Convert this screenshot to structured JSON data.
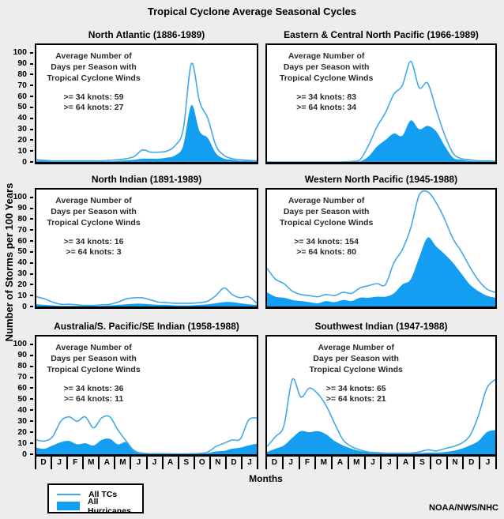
{
  "title": "Tropical Cyclone Average Seasonal Cycles",
  "credit": "NOAA/NWS/NHC",
  "annotation": [
    "Average Number of",
    "Days per Season with",
    "Tropical Cyclone Winds"
  ],
  "legend": {
    "tcs": "All TCs",
    "hurricanes": "All Hurricanes"
  },
  "colors": {
    "tc_line": "#41a9ea",
    "hurricane_fill": "#149ef2",
    "panel_bg": "#ffffff",
    "page_bg": "#ededed",
    "axis": "#000000",
    "annotation_text": "#2b2b2b"
  },
  "chart_data": {
    "type": "area",
    "xlabel": "Months",
    "ylabel": "Number of Storms per 100 Years",
    "months": [
      "D",
      "J",
      "F",
      "M",
      "A",
      "M",
      "J",
      "J",
      "A",
      "S",
      "O",
      "N",
      "D",
      "J"
    ],
    "yticks": [
      0,
      10,
      20,
      30,
      40,
      50,
      60,
      70,
      80,
      90,
      100
    ],
    "ylim": [
      0,
      100
    ],
    "x_note": "28 samples per series at half-month spacing spanning 14 months (Dec through following Jan)",
    "panels": [
      {
        "id": "north-atlantic",
        "title": "North Atlantic (1886-1989)",
        "ge34": ">= 34 knots: 59",
        "ge64": ">= 64 knots: 27",
        "series": {
          "all_tcs": [
            2,
            1.5,
            1,
            1,
            1,
            1,
            1,
            1,
            1,
            1.5,
            2,
            3,
            5,
            11,
            9,
            9,
            10,
            15,
            30,
            90,
            55,
            40,
            15,
            6,
            3,
            2,
            1.5,
            1
          ],
          "all_hurricanes": [
            1,
            1,
            0.5,
            0.5,
            0.5,
            0.5,
            0.5,
            0.5,
            0.5,
            0.5,
            1,
            1.5,
            2,
            3,
            3,
            3,
            4,
            6,
            15,
            52,
            28,
            22,
            8,
            3,
            2,
            1,
            1,
            0.5
          ]
        }
      },
      {
        "id": "eastern-central-north-pacific",
        "title": "Eastern & Central North Pacific (1966-1989)",
        "ge34": ">= 34 knots: 83",
        "ge64": ">= 64 knots: 34",
        "series": {
          "all_tcs": [
            0,
            0,
            0,
            0,
            0,
            0,
            0,
            0,
            0,
            0,
            0.5,
            2,
            15,
            32,
            45,
            62,
            70,
            92,
            68,
            72,
            48,
            25,
            8,
            3,
            2,
            1,
            1,
            0.5
          ],
          "all_hurricanes": [
            0,
            0,
            0,
            0,
            0,
            0,
            0,
            0,
            0,
            0,
            0,
            0.5,
            5,
            14,
            20,
            26,
            24,
            38,
            30,
            33,
            28,
            15,
            4,
            2,
            1,
            0.5,
            0.5,
            0
          ]
        }
      },
      {
        "id": "north-indian",
        "title": "North Indian (1891-1989)",
        "ge34": ">= 34 knots: 16",
        "ge64": ">= 64 knots: 3",
        "series": {
          "all_tcs": [
            9,
            7,
            4,
            2,
            2,
            1.5,
            1,
            1,
            1.5,
            2,
            4,
            7,
            8,
            8,
            6,
            4,
            3.5,
            3,
            3,
            3,
            3.5,
            5,
            10,
            17,
            11,
            8,
            9,
            3
          ],
          "all_hurricanes": [
            2,
            1.5,
            1,
            0.5,
            0.5,
            0.5,
            0.5,
            0.5,
            0.5,
            1,
            1.5,
            2,
            2.5,
            2.5,
            2,
            1.5,
            1.5,
            1,
            1,
            1,
            1.5,
            2,
            3,
            4,
            4,
            3,
            2,
            1.5
          ]
        }
      },
      {
        "id": "western-north-pacific",
        "title": "Western North Pacific (1945-1988)",
        "ge34": ">= 34 knots: 154",
        "ge64": ">= 64 knots: 80",
        "series": {
          "all_tcs": [
            35,
            25,
            21,
            14,
            11,
            10,
            9,
            11,
            10,
            13,
            12,
            17,
            19,
            21,
            20,
            40,
            52,
            72,
            102,
            105,
            95,
            80,
            62,
            50,
            36,
            24,
            16,
            13
          ],
          "all_hurricanes": [
            13,
            9,
            8,
            6,
            5,
            4,
            3,
            5,
            4,
            6,
            5,
            8,
            8,
            9,
            9,
            12,
            20,
            25,
            45,
            63,
            55,
            48,
            40,
            30,
            20,
            14,
            10,
            8
          ]
        }
      },
      {
        "id": "australia-s-pacific-se-indian",
        "title": "Australia/S. Pacific/SE Indian (1958-1988)",
        "ge34": ">= 34 knots: 36",
        "ge64": ">= 64 knots: 11",
        "series": {
          "all_tcs": [
            13,
            12,
            16,
            30,
            34,
            30,
            34,
            24,
            33,
            34,
            22,
            12,
            3,
            1,
            0.5,
            0.5,
            0.5,
            0.3,
            0.3,
            0.5,
            0.8,
            2,
            7,
            10,
            13,
            14,
            31,
            33
          ],
          "all_hurricanes": [
            6,
            5,
            8,
            11,
            12,
            9,
            10,
            8,
            13,
            14,
            9,
            11,
            4,
            1,
            0.3,
            0.2,
            0.2,
            0.2,
            0.2,
            0.3,
            0.5,
            1,
            2.5,
            3,
            5,
            6,
            8,
            9.5
          ]
        }
      },
      {
        "id": "southwest-indian",
        "title": "Southwest Indian (1947-1988)",
        "ge34": ">= 34 knots: 65",
        "ge64": ">= 64 knots: 21",
        "series": {
          "all_tcs": [
            7,
            16,
            26,
            68,
            52,
            60,
            55,
            44,
            28,
            13,
            7,
            4,
            2,
            1.5,
            1,
            1,
            1,
            1,
            2,
            4,
            3,
            5,
            7,
            10,
            17,
            35,
            60,
            68
          ],
          "all_hurricanes": [
            2,
            5,
            8,
            15,
            21,
            20,
            21,
            18,
            12,
            8,
            5,
            3,
            2,
            1.5,
            1,
            1,
            1,
            1,
            1,
            1.5,
            1.5,
            2,
            3,
            5,
            8,
            12,
            20,
            22
          ]
        }
      }
    ]
  }
}
